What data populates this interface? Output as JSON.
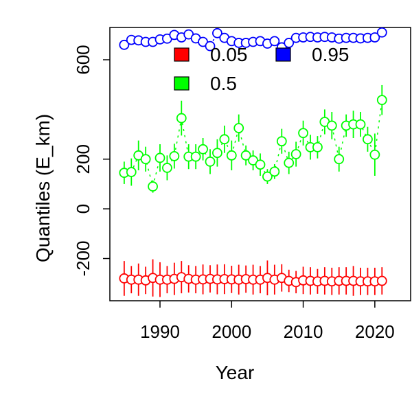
{
  "chart_data": {
    "type": "scatter",
    "title": "",
    "xlabel": "Year",
    "ylabel": "Quantiles (E_km)",
    "xlim": [
      1983,
      2025
    ],
    "ylim": [
      -370,
      730
    ],
    "x_ticks": [
      1990,
      2000,
      2010,
      2020
    ],
    "y_ticks": [
      -200,
      0,
      200,
      600
    ],
    "x_tick_labels": [
      "1990",
      "2000",
      "2010",
      "2020"
    ],
    "y_tick_labels": [
      "-200",
      "0",
      "200",
      "600"
    ],
    "legend": {
      "placement": "top-center",
      "entries": [
        {
          "label": "0.05",
          "color": "#ff0000"
        },
        {
          "label": "0.95",
          "color": "#0000ff"
        },
        {
          "label": "0.5",
          "color": "#00ff00"
        }
      ]
    },
    "series": [
      {
        "name": "0.05",
        "color": "#ff0000",
        "x": [
          1985,
          1986,
          1987,
          1988,
          1989,
          1990,
          1991,
          1992,
          1993,
          1994,
          1995,
          1996,
          1997,
          1998,
          1999,
          2000,
          2001,
          2002,
          2003,
          2004,
          2005,
          2006,
          2007,
          2008,
          2009,
          2010,
          2011,
          2012,
          2013,
          2014,
          2015,
          2016,
          2017,
          2018,
          2019,
          2020,
          2021
        ],
        "y": [
          -280,
          -285,
          -285,
          -288,
          -278,
          -285,
          -285,
          -282,
          -275,
          -282,
          -285,
          -284,
          -282,
          -284,
          -283,
          -284,
          -285,
          -283,
          -285,
          -285,
          -278,
          -285,
          -278,
          -290,
          -295,
          -288,
          -290,
          -292,
          -290,
          -292,
          -290,
          -290,
          -290,
          -292,
          -292,
          -292,
          -290
        ],
        "err": [
          70,
          55,
          65,
          55,
          75,
          70,
          55,
          65,
          65,
          55,
          55,
          60,
          55,
          60,
          60,
          55,
          60,
          55,
          60,
          55,
          70,
          60,
          55,
          45,
          45,
          55,
          55,
          50,
          55,
          55,
          55,
          55,
          60,
          55,
          55,
          55,
          55
        ]
      },
      {
        "name": "0.5",
        "color": "#00ff00",
        "x": [
          1985,
          1986,
          1987,
          1988,
          1989,
          1990,
          1991,
          1992,
          1993,
          1994,
          1995,
          1996,
          1997,
          1998,
          1999,
          2000,
          2001,
          2002,
          2003,
          2004,
          2005,
          2006,
          2007,
          2008,
          2009,
          2010,
          2011,
          2012,
          2013,
          2014,
          2015,
          2016,
          2017,
          2018,
          2019,
          2020,
          2021
        ],
        "y": [
          145,
          148,
          215,
          200,
          90,
          205,
          165,
          212,
          365,
          210,
          210,
          240,
          190,
          225,
          280,
          215,
          325,
          215,
          195,
          178,
          130,
          150,
          272,
          185,
          220,
          305,
          248,
          248,
          350,
          335,
          200,
          335,
          340,
          340,
          280,
          218,
          438
        ],
        "err": [
          45,
          55,
          60,
          50,
          25,
          55,
          50,
          50,
          70,
          50,
          50,
          45,
          50,
          55,
          55,
          60,
          55,
          40,
          40,
          45,
          30,
          30,
          50,
          45,
          50,
          50,
          50,
          45,
          50,
          55,
          50,
          45,
          55,
          50,
          50,
          85,
          60
        ]
      },
      {
        "name": "0.95",
        "color": "#0000ff",
        "x": [
          1985,
          1986,
          1987,
          1988,
          1989,
          1990,
          1991,
          1992,
          1993,
          1994,
          1995,
          1996,
          1997,
          1998,
          1999,
          2000,
          2001,
          2002,
          2003,
          2004,
          2005,
          2006,
          2007,
          2008,
          2009,
          2010,
          2011,
          2012,
          2013,
          2014,
          2015,
          2016,
          2017,
          2018,
          2019,
          2020,
          2021
        ],
        "y": [
          660,
          680,
          678,
          672,
          672,
          682,
          685,
          700,
          690,
          702,
          686,
          672,
          655,
          707,
          688,
          675,
          668,
          668,
          672,
          675,
          665,
          675,
          650,
          668,
          688,
          690,
          692,
          690,
          692,
          690,
          685,
          688,
          688,
          686,
          688,
          690,
          710
        ],
        "err": [
          0,
          0,
          0,
          0,
          0,
          0,
          0,
          0,
          0,
          0,
          0,
          0,
          0,
          0,
          0,
          0,
          0,
          0,
          0,
          0,
          0,
          0,
          0,
          0,
          0,
          0,
          0,
          0,
          0,
          0,
          0,
          0,
          0,
          0,
          0,
          0,
          0
        ]
      }
    ]
  }
}
